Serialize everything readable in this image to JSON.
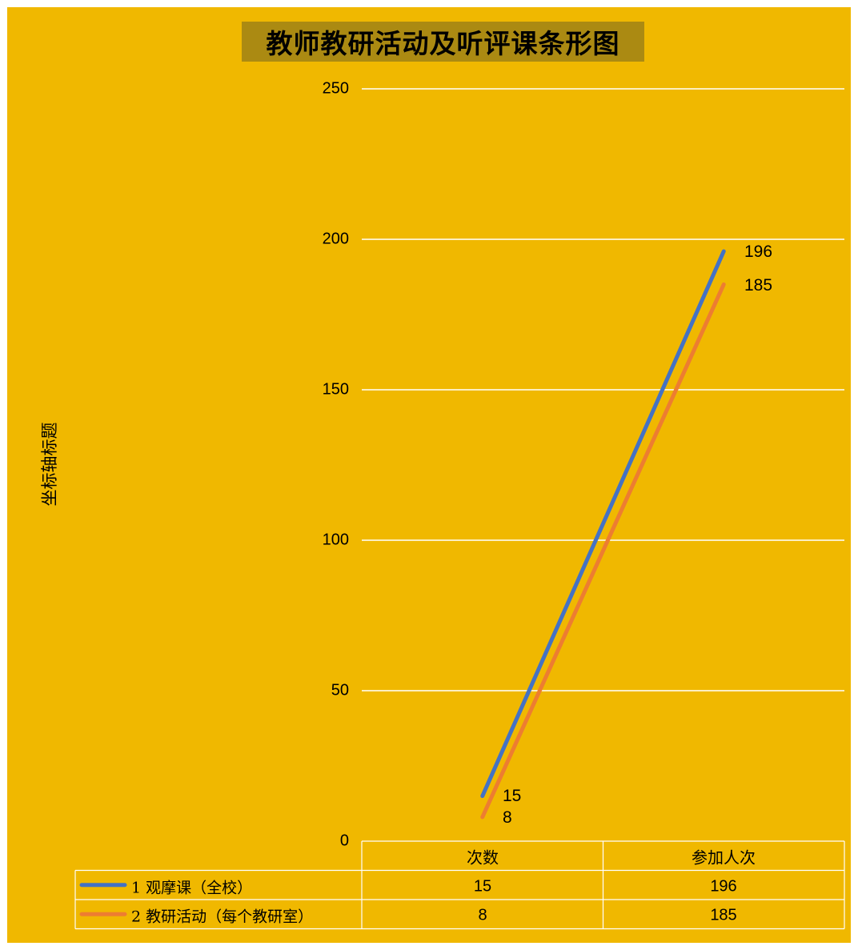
{
  "chart_data": {
    "type": "line",
    "title": "教师教研活动及听评课条形图",
    "ylabel": "坐标轴标题",
    "categories": [
      "次数",
      "参加人次"
    ],
    "ylim": [
      0,
      250
    ],
    "yticks": [
      "250",
      "200",
      "150",
      "100",
      "50",
      "0"
    ],
    "grid": true,
    "legend_placement": "bottom data table",
    "series": [
      {
        "name": "1 观摩课（全校）",
        "values": [
          15,
          196
        ],
        "labels": [
          "15",
          "196"
        ],
        "color": "#4472c4"
      },
      {
        "name": "2 教研活动（每个教研室）",
        "values": [
          8,
          185
        ],
        "labels": [
          "8",
          "185"
        ],
        "color": "#ed7d31"
      }
    ]
  },
  "style": {
    "background": "#f0b800",
    "title_background": "#ab8a12",
    "grid_color": "#ffffff"
  }
}
